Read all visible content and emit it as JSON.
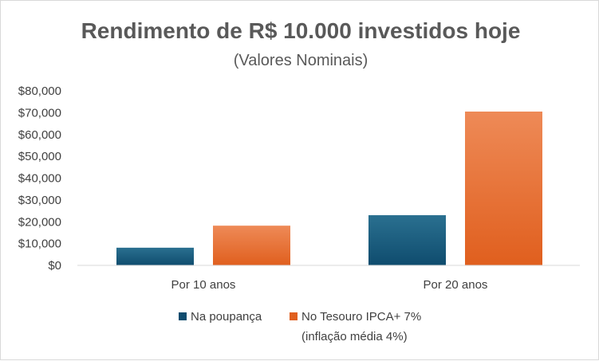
{
  "chart_data": {
    "type": "bar",
    "title": "Rendimento de R$ 10.000 investidos hoje",
    "subtitle": "(Valores Nominais)",
    "xlabel": "",
    "ylabel": "",
    "categories": [
      "Por 10 anos",
      "Por 20 anos"
    ],
    "y_ticks": [
      "$0",
      "$10,000",
      "$20,000",
      "$30,000",
      "$40,000",
      "$50,000",
      "$60,000",
      "$70,000",
      "$80,000"
    ],
    "ylim": [
      0,
      80000
    ],
    "grid": false,
    "legend_position": "bottom",
    "series": [
      {
        "name": "Na poupança",
        "values": [
          8100,
          23000
        ],
        "color_top": "#2a7090",
        "color_bottom": "#0f4c6e"
      },
      {
        "name": "No Tesouro IPCA+ 7%",
        "name_line2": "(inflação média 4%)",
        "values": [
          18200,
          70500
        ],
        "color_top": "#ee8a57",
        "color_bottom": "#e05f1e"
      }
    ]
  }
}
